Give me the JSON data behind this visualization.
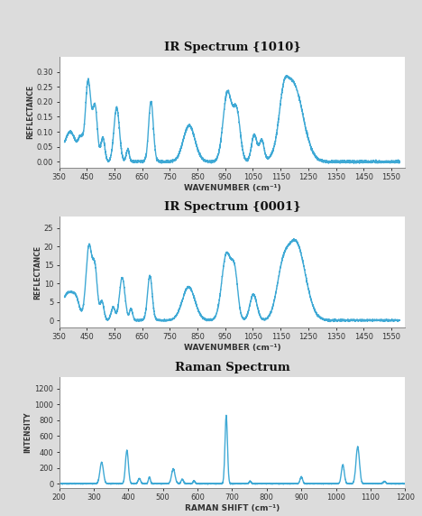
{
  "bg_color": "#dcdcdc",
  "plot_bg_color": "#ffffff",
  "line_color": "#3fa9d5",
  "line_width": 1.0,
  "title1": "IR SPECTRUM {1010}",
  "title2": "IR SPECTRUM {0001}",
  "title3": "RAMAN SPECTRUM",
  "ir1": {
    "xlabel": "WAVENUMBER (cm⁻¹)",
    "ylabel": "REFLECTANCE",
    "xlim": [
      350,
      1600
    ],
    "ylim": [
      -0.02,
      0.35
    ],
    "xticks": [
      350,
      450,
      550,
      650,
      750,
      850,
      950,
      1050,
      1150,
      1250,
      1350,
      1450,
      1550
    ],
    "yticks": [
      0,
      0.05,
      0.1,
      0.15,
      0.2,
      0.25,
      0.3
    ]
  },
  "ir2": {
    "xlabel": "WAVENUMBER (cm⁻¹)",
    "ylabel": "REFLECTANCE",
    "xlim": [
      350,
      1600
    ],
    "ylim": [
      -2,
      28
    ],
    "xticks": [
      350,
      450,
      550,
      650,
      750,
      850,
      950,
      1050,
      1150,
      1250,
      1350,
      1450,
      1550
    ],
    "yticks": [
      0,
      5,
      10,
      15,
      20,
      25
    ]
  },
  "raman": {
    "xlabel": "RAMAN SHIFT (cm⁻¹)",
    "ylabel": "INTENSITY",
    "xlim": [
      200,
      1200
    ],
    "ylim": [
      -50,
      1350
    ],
    "xticks": [
      200,
      300,
      400,
      500,
      600,
      700,
      800,
      900,
      1000,
      1100,
      1200
    ],
    "yticks": [
      0,
      200,
      400,
      600,
      800,
      1000,
      1200
    ]
  }
}
